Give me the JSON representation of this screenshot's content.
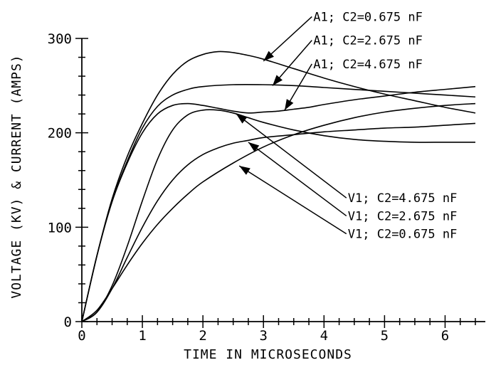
{
  "chart_data": {
    "type": "line",
    "title": "",
    "xlabel": "TIME IN MICROSECONDS",
    "ylabel": "VOLTAGE (KV) & CURRENT (AMPS)",
    "xlim": [
      0,
      6.5
    ],
    "ylim": [
      0,
      300
    ],
    "xticks": [
      0,
      1,
      2,
      3,
      4,
      5,
      6
    ],
    "xtick_labels": [
      "0",
      "1",
      "2",
      "3",
      "4",
      "5",
      "6"
    ],
    "xminor_step": 0.25,
    "yticks": [
      0,
      100,
      200,
      300
    ],
    "ytick_labels": [
      "0",
      "100",
      "200",
      "300"
    ],
    "yminor_step": 20,
    "grid": false,
    "series": [
      {
        "name": "A1; C2=0.675 nF",
        "x": [
          0,
          0.25,
          0.5,
          0.75,
          1.0,
          1.25,
          1.5,
          1.75,
          2.0,
          2.25,
          2.5,
          2.75,
          3.0,
          3.5,
          4.0,
          4.5,
          5.0,
          5.5,
          6.0,
          6.5
        ],
        "y": [
          0,
          70,
          130,
          175,
          210,
          240,
          262,
          276,
          283,
          286,
          285,
          282,
          278,
          268,
          258,
          249,
          241,
          234,
          227,
          221
        ],
        "label_anchor": {
          "x": 3.0,
          "y": 276
        },
        "label_text": {
          "x": 3.8,
          "y": 323
        }
      },
      {
        "name": "A1; C2=2.675 nF",
        "x": [
          0,
          0.25,
          0.5,
          0.75,
          1.0,
          1.25,
          1.5,
          1.75,
          2.0,
          2.5,
          3.0,
          3.5,
          4.0,
          4.5,
          5.0,
          5.5,
          6.0,
          6.5
        ],
        "y": [
          0,
          70,
          128,
          170,
          205,
          228,
          240,
          246,
          249,
          251,
          251,
          250,
          248,
          246,
          244,
          242,
          240,
          238
        ],
        "label_anchor": {
          "x": 3.15,
          "y": 250
        },
        "label_text": {
          "x": 3.8,
          "y": 298
        }
      },
      {
        "name": "A1; C2=4.675 nF",
        "x": [
          0,
          0.25,
          0.5,
          0.75,
          1.0,
          1.25,
          1.5,
          1.75,
          2.0,
          2.25,
          2.5,
          2.75,
          3.0,
          3.25,
          3.5,
          3.75,
          4.0,
          4.5,
          5.0,
          5.5,
          6.0,
          6.5
        ],
        "y": [
          0,
          70,
          127,
          168,
          200,
          220,
          229,
          231,
          229,
          226,
          223,
          221,
          222,
          223,
          225,
          227,
          230,
          235,
          239,
          243,
          246,
          249
        ],
        "label_anchor": {
          "x": 3.35,
          "y": 224
        },
        "label_text": {
          "x": 3.8,
          "y": 273
        }
      },
      {
        "name": "V1; C2=4.675 nF",
        "x": [
          0,
          0.25,
          0.5,
          0.75,
          1.0,
          1.25,
          1.5,
          1.75,
          2.0,
          2.25,
          2.5,
          2.75,
          3.0,
          3.5,
          4.0,
          4.5,
          5.0,
          5.5,
          6.0,
          6.5
        ],
        "y": [
          0,
          10,
          38,
          80,
          128,
          172,
          203,
          219,
          224,
          224,
          221,
          216,
          211,
          203,
          197,
          193,
          191,
          190,
          190,
          190
        ],
        "label_anchor": {
          "x": 2.55,
          "y": 220
        },
        "label_text": {
          "x": 4.37,
          "y": 131
        }
      },
      {
        "name": "V1; C2=2.675 nF",
        "x": [
          0,
          0.25,
          0.5,
          0.75,
          1.0,
          1.25,
          1.5,
          1.75,
          2.0,
          2.25,
          2.5,
          2.75,
          3.0,
          3.5,
          4.0,
          4.5,
          5.0,
          5.5,
          6.0,
          6.5
        ],
        "y": [
          0,
          10,
          35,
          68,
          100,
          128,
          150,
          166,
          177,
          184,
          189,
          192,
          195,
          198,
          201,
          203,
          205,
          206,
          208,
          210
        ],
        "label_anchor": {
          "x": 2.75,
          "y": 190
        },
        "label_text": {
          "x": 4.37,
          "y": 112
        }
      },
      {
        "name": "V1; C2=0.675 nF",
        "x": [
          0,
          0.25,
          0.5,
          0.75,
          1.0,
          1.25,
          1.5,
          1.75,
          2.0,
          2.5,
          3.0,
          3.5,
          4.0,
          4.5,
          5.0,
          5.5,
          6.0,
          6.5
        ],
        "y": [
          0,
          12,
          35,
          60,
          83,
          103,
          120,
          135,
          148,
          168,
          185,
          198,
          208,
          216,
          222,
          226,
          229,
          231
        ],
        "label_anchor": {
          "x": 2.6,
          "y": 165
        },
        "label_text": {
          "x": 4.37,
          "y": 93
        }
      }
    ]
  }
}
